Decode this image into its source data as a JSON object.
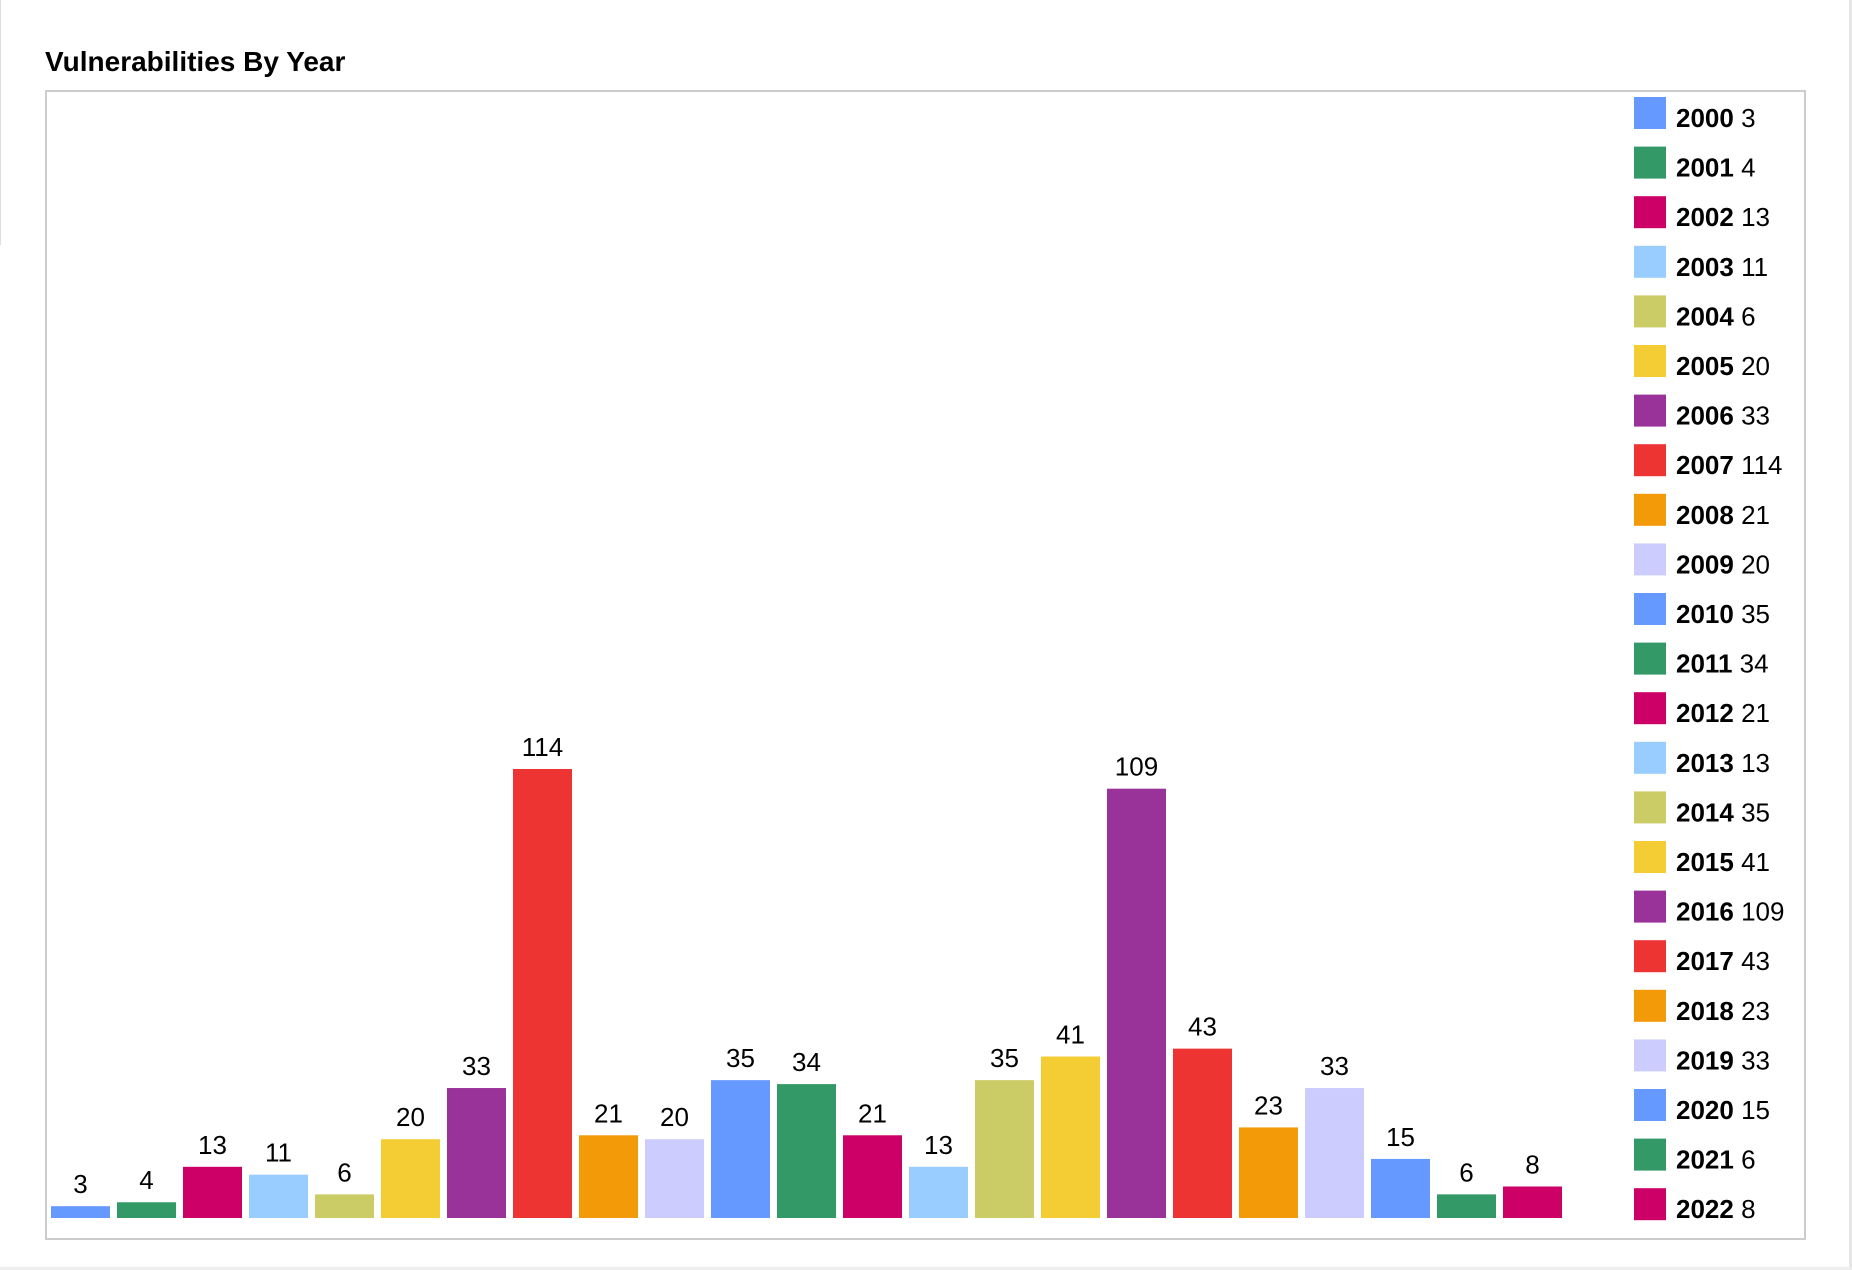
{
  "chart_data": {
    "type": "bar",
    "title": "Vulnerabilities By Year",
    "categories": [
      "2000",
      "2001",
      "2002",
      "2003",
      "2004",
      "2005",
      "2006",
      "2007",
      "2008",
      "2009",
      "2010",
      "2011",
      "2012",
      "2013",
      "2014",
      "2015",
      "2016",
      "2017",
      "2018",
      "2019",
      "2020",
      "2021",
      "2022"
    ],
    "values": [
      3,
      4,
      13,
      11,
      6,
      20,
      33,
      114,
      21,
      20,
      35,
      34,
      21,
      13,
      35,
      41,
      109,
      43,
      23,
      33,
      15,
      6,
      8
    ],
    "colors": [
      "#6699ff",
      "#339966",
      "#cc0066",
      "#99ccff",
      "#cccc66",
      "#f4cc33",
      "#993399",
      "#ee3333",
      "#f39a08",
      "#ccccff",
      "#6699ff",
      "#339966",
      "#cc0066",
      "#99ccff",
      "#cccc66",
      "#f4cc33",
      "#993399",
      "#ee3333",
      "#f39a08",
      "#ccccff",
      "#6699ff",
      "#339966",
      "#cc0066"
    ],
    "data_labels": true,
    "legend": "right",
    "grid": false,
    "xlabel": "",
    "ylabel": "",
    "ylim": [
      0,
      114
    ]
  }
}
